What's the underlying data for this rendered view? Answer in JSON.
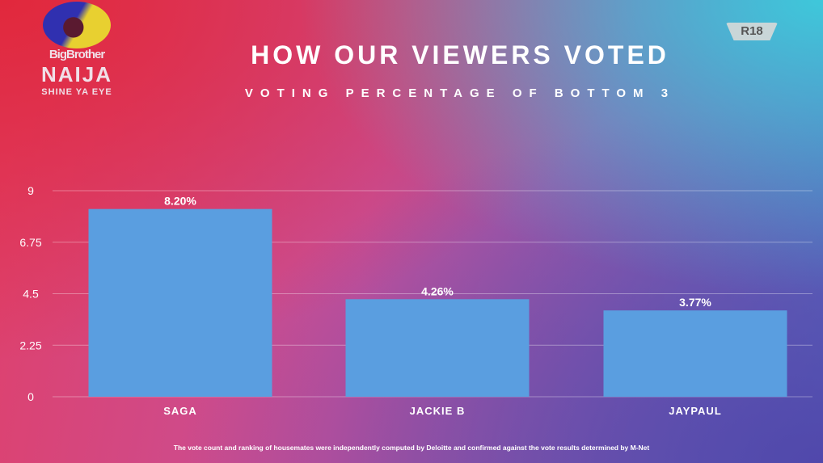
{
  "logo": {
    "line1": "BigBrother",
    "line2": "NAIJA",
    "line3": "SHINE YA EYE"
  },
  "rating": "R18",
  "chart_data": {
    "type": "bar",
    "title": "HOW OUR VIEWERS VOTED",
    "subtitle": "VOTING PERCENTAGE OF BOTTOM 3",
    "categories": [
      "SAGA",
      "JACKIE B",
      "JAYPAUL"
    ],
    "values": [
      8.2,
      4.26,
      3.77
    ],
    "data_labels": [
      "8.20%",
      "4.26%",
      "3.77%"
    ],
    "ylim": [
      0,
      9
    ],
    "yticks": [
      "0",
      "2.25",
      "4.5",
      "6.75",
      "9"
    ],
    "grid": true,
    "bar_color": "#5a9ee0"
  },
  "footnote": "The vote count and ranking of housemates were independently computed by Deloitte and confirmed against the vote results determined by M-Net"
}
